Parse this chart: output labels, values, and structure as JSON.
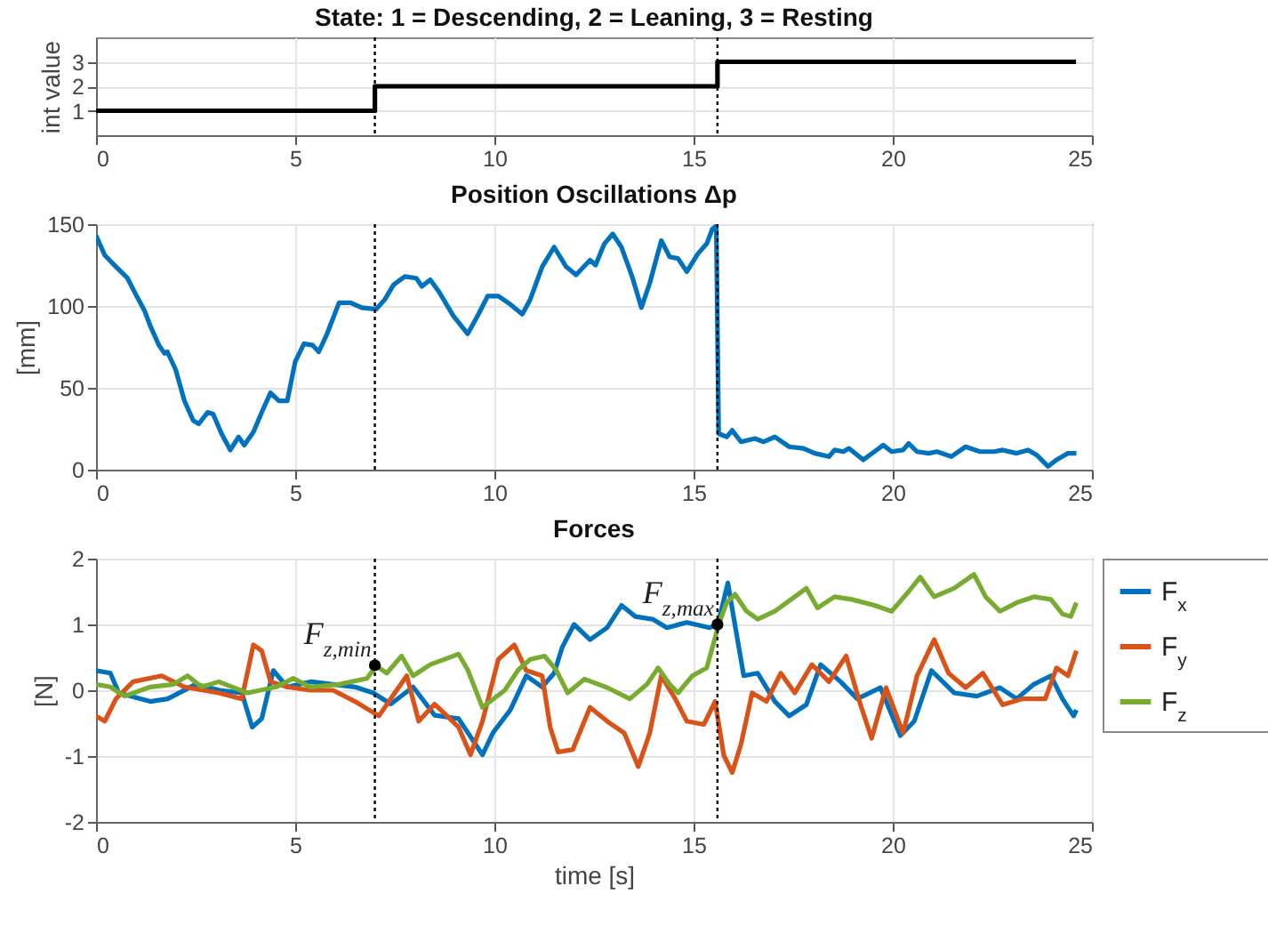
{
  "chart_data": [
    {
      "type": "step",
      "title": "State: 1 = Descending, 2 = Leaning, 3 = Resting",
      "ylabel": "int value",
      "grid": true,
      "xlim": [
        0,
        25
      ],
      "xticks": [
        0,
        5,
        10,
        15,
        20,
        25
      ],
      "ylim": [
        0,
        4
      ],
      "yticks": [
        1,
        2,
        3
      ],
      "x": [
        0,
        7.0,
        15.6,
        24.6
      ],
      "series": [
        {
          "color": "#000000",
          "values": [
            1,
            2,
            3,
            3
          ]
        }
      ],
      "ref_lines": [
        {
          "axis": "x",
          "value": 7.0,
          "color": "#000000",
          "line_style": "dotted"
        },
        {
          "axis": "x",
          "value": 15.6,
          "color": "#000000",
          "line_style": "dotted"
        }
      ]
    },
    {
      "type": "line",
      "title": "Position Oscillations Δp",
      "ylabel": "[mm]",
      "grid": true,
      "xlim": [
        0,
        25
      ],
      "xticks": [
        0,
        5,
        10,
        15,
        20,
        25
      ],
      "ylim": [
        0,
        150
      ],
      "yticks": [
        0,
        50,
        100,
        150
      ],
      "x": [
        0,
        0.22,
        0.5,
        0.79,
        1.0,
        1.22,
        1.36,
        1.58,
        1.72,
        1.79,
        2.0,
        2.22,
        2.44,
        2.58,
        2.8,
        2.94,
        3.15,
        3.37,
        3.58,
        3.72,
        3.95,
        4.16,
        4.38,
        4.59,
        4.8,
        5.0,
        5.22,
        5.44,
        5.59,
        5.8,
        6.1,
        6.39,
        6.67,
        7.03,
        7.25,
        7.47,
        7.75,
        8.04,
        8.18,
        8.39,
        8.6,
        8.97,
        9.33,
        9.6,
        9.83,
        10.1,
        10.4,
        10.7,
        10.9,
        11.2,
        11.5,
        11.8,
        12.05,
        12.4,
        12.54,
        12.76,
        12.97,
        13.19,
        13.47,
        13.69,
        13.9,
        14.19,
        14.4,
        14.61,
        14.83,
        15.11,
        15.33,
        15.47,
        15.57,
        15.63,
        15.83,
        15.97,
        16.19,
        16.54,
        16.76,
        17.04,
        17.4,
        17.76,
        18.04,
        18.4,
        18.54,
        18.76,
        18.9,
        19.26,
        19.54,
        19.76,
        19.97,
        20.26,
        20.4,
        20.61,
        20.9,
        21.11,
        21.47,
        21.83,
        22.19,
        22.54,
        22.76,
        23.11,
        23.4,
        23.61,
        23.9,
        24.11,
        24.4,
        24.61
      ],
      "series": [
        {
          "color": "#0072bd",
          "values": [
            143,
            131,
            124,
            117,
            107,
            97,
            88,
            76,
            71,
            72,
            61,
            42,
            30,
            28,
            35,
            34,
            22,
            12,
            20,
            15,
            23,
            35,
            47,
            42,
            42,
            66,
            77,
            76,
            72,
            83,
            102,
            102,
            99,
            98,
            104,
            113,
            118,
            117,
            112,
            116,
            109,
            94,
            83,
            95,
            106,
            106,
            101,
            95,
            104,
            124,
            136,
            124,
            119,
            128,
            125,
            138,
            144,
            136,
            117,
            99,
            114,
            140,
            130,
            129,
            121,
            132,
            138,
            147,
            149,
            22,
            20,
            24,
            17,
            19,
            17,
            20,
            14,
            13,
            10,
            8,
            12,
            11,
            13,
            6,
            11,
            15,
            11,
            12,
            16,
            11,
            10,
            11,
            8,
            14,
            11,
            11,
            12,
            10,
            12,
            9,
            2,
            6,
            10,
            10
          ]
        }
      ],
      "ref_lines": [
        {
          "axis": "x",
          "value": 7.0,
          "color": "#000000",
          "line_style": "dotted"
        },
        {
          "axis": "x",
          "value": 15.6,
          "color": "#000000",
          "line_style": "dotted"
        }
      ]
    },
    {
      "type": "line",
      "title": "Forces",
      "xlabel": "time [s]",
      "ylabel": "[N]",
      "grid": true,
      "legend": "right",
      "xlim": [
        0,
        25
      ],
      "xticks": [
        0,
        5,
        10,
        15,
        20,
        25
      ],
      "ylim": [
        -2,
        2
      ],
      "yticks": [
        -2,
        -1,
        0,
        1,
        2
      ],
      "series": [
        {
          "name": "F$_{x}$",
          "color": "#0072bd",
          "x": [
            0,
            0.36,
            0.57,
            1.36,
            1.8,
            2.5,
            3.1,
            3.66,
            3.92,
            4.16,
            4.45,
            4.8,
            5.4,
            5.95,
            6.5,
            6.96,
            7.4,
            7.96,
            8.5,
            9.1,
            9.7,
            9.97,
            10.4,
            10.8,
            11.2,
            11.5,
            11.7,
            12.0,
            12.4,
            12.83,
            13.19,
            13.54,
            13.97,
            14.33,
            14.83,
            15.4,
            15.61,
            15.86,
            16.04,
            16.26,
            16.61,
            17.04,
            17.4,
            17.83,
            18.19,
            18.69,
            19.11,
            19.69,
            20.19,
            20.54,
            20.97,
            21.54,
            22.11,
            22.69,
            23.11,
            23.54,
            23.97,
            24.26,
            24.54,
            24.61
          ],
          "values": [
            0.3,
            0.26,
            -0.04,
            -0.17,
            -0.13,
            0.09,
            0,
            -0.04,
            -0.56,
            -0.43,
            0.3,
            0.05,
            0.13,
            0.09,
            0.05,
            -0.04,
            -0.21,
            0.05,
            -0.38,
            -0.43,
            -0.98,
            -0.64,
            -0.3,
            0.22,
            0.05,
            0.26,
            0.65,
            1.0,
            0.77,
            0.95,
            1.29,
            1.12,
            1.08,
            0.95,
            1.03,
            0.95,
            1.0,
            1.63,
            0.99,
            0.22,
            0.26,
            -0.17,
            -0.39,
            -0.22,
            0.39,
            0.13,
            -0.13,
            0.04,
            -0.69,
            -0.47,
            0.3,
            -0.04,
            -0.09,
            0.04,
            -0.13,
            0.09,
            0.22,
            -0.13,
            -0.39,
            -0.3
          ]
        },
        {
          "name": "F$_{y}$",
          "color": "#d95319",
          "x": [
            0,
            0.22,
            0.5,
            0.93,
            1.65,
            2.22,
            3.08,
            3.66,
            3.95,
            4.16,
            4.38,
            4.8,
            5.38,
            5.95,
            6.5,
            7.1,
            7.5,
            7.8,
            8.1,
            8.5,
            9.1,
            9.4,
            9.7,
            10.1,
            10.5,
            10.8,
            11.2,
            11.4,
            11.6,
            11.97,
            12.4,
            12.83,
            13.26,
            13.61,
            13.9,
            14.19,
            14.54,
            14.83,
            15.26,
            15.54,
            15.76,
            15.97,
            16.19,
            16.47,
            16.83,
            17.19,
            17.54,
            17.97,
            18.4,
            18.83,
            19.19,
            19.47,
            19.83,
            20.26,
            20.61,
            21.04,
            21.4,
            21.83,
            22.26,
            22.76,
            23.26,
            23.83,
            24.11,
            24.4,
            24.61
          ],
          "values": [
            -0.39,
            -0.47,
            -0.13,
            0.13,
            0.22,
            0.05,
            -0.04,
            -0.13,
            0.69,
            0.6,
            0.13,
            0.05,
            0,
            0,
            -0.17,
            -0.39,
            -0.04,
            0.22,
            -0.47,
            -0.21,
            -0.56,
            -0.98,
            -0.47,
            0.47,
            0.69,
            0.3,
            0.22,
            -0.56,
            -0.94,
            -0.9,
            -0.26,
            -0.47,
            -0.65,
            -1.16,
            -0.65,
            0.22,
            -0.13,
            -0.47,
            -0.52,
            -0.17,
            -0.99,
            -1.25,
            -0.82,
            -0.04,
            -0.17,
            0.26,
            -0.04,
            0.39,
            0.13,
            0.52,
            -0.22,
            -0.73,
            0.04,
            -0.65,
            0.22,
            0.77,
            0.26,
            0.04,
            0.26,
            -0.22,
            -0.13,
            -0.13,
            0.34,
            0.22,
            0.6
          ]
        },
        {
          "name": "F$_{z}$",
          "color": "#77ac30",
          "x": [
            0,
            0.36,
            0.72,
            1.36,
            1.94,
            2.3,
            2.65,
            3.08,
            3.8,
            4.52,
            4.95,
            5.38,
            6.1,
            6.8,
            7.03,
            7.3,
            7.67,
            7.96,
            8.39,
            9.1,
            9.33,
            9.7,
            10.26,
            10.6,
            10.9,
            11.26,
            11.55,
            11.84,
            12.26,
            12.83,
            13.4,
            13.83,
            14.11,
            14.4,
            14.61,
            14.97,
            15.33,
            15.51,
            15.63,
            15.83,
            16.04,
            16.33,
            16.61,
            17.04,
            17.54,
            17.83,
            18.11,
            18.54,
            18.97,
            19.54,
            19.97,
            20.4,
            20.69,
            21.04,
            21.54,
            22.04,
            22.33,
            22.69,
            23.11,
            23.54,
            23.97,
            24.26,
            24.47,
            24.61
          ],
          "values": [
            0.09,
            0.05,
            -0.09,
            0.05,
            0.09,
            0.22,
            0.05,
            0.13,
            -0.04,
            0.05,
            0.18,
            0.05,
            0.09,
            0.18,
            0.37,
            0.26,
            0.52,
            0.22,
            0.39,
            0.55,
            0.31,
            -0.26,
            0,
            0.31,
            0.47,
            0.52,
            0.31,
            -0.04,
            0.17,
            0.04,
            -0.13,
            0.09,
            0.34,
            0.09,
            -0.04,
            0.22,
            0.34,
            0.73,
            1.0,
            1.33,
            1.46,
            1.2,
            1.08,
            1.2,
            1.42,
            1.55,
            1.25,
            1.42,
            1.38,
            1.29,
            1.2,
            1.5,
            1.72,
            1.42,
            1.55,
            1.76,
            1.42,
            1.2,
            1.33,
            1.42,
            1.38,
            1.16,
            1.12,
            1.33
          ]
        }
      ],
      "annotations": [
        {
          "text": "F$_{z,min}$",
          "x": 7.0,
          "y": 0.38
        },
        {
          "text": "F$_{z,max}$",
          "x": 15.6,
          "y": 1.0
        }
      ],
      "ref_lines": [
        {
          "axis": "x",
          "value": 7.0,
          "color": "#000000",
          "line_style": "dotted"
        },
        {
          "axis": "x",
          "value": 15.6,
          "color": "#000000",
          "line_style": "dotted"
        }
      ]
    }
  ]
}
